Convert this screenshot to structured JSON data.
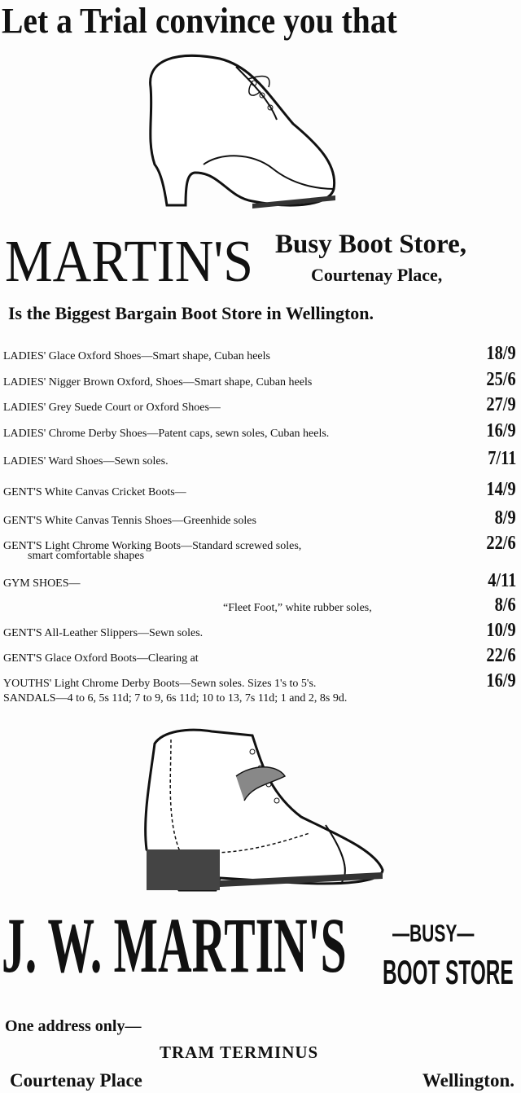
{
  "headline": "Let a Trial convince you that",
  "store": {
    "name": "MARTIN'S",
    "subtitle": "Busy Boot Store,",
    "location": "Courtenay Place,"
  },
  "tagline": "Is the Biggest Bargain Boot Store in Wellington.",
  "items": [
    {
      "desc": "LADIES' Glace Oxford Shoes—Smart shape, Cuban heels",
      "price": "18/9"
    },
    {
      "desc": "LADIES' Nigger Brown Oxford, Shoes—Smart shape, Cuban heels",
      "price": "25/6"
    },
    {
      "desc": "LADIES' Grey Suede Court or Oxford Shoes—",
      "price": "27/9"
    },
    {
      "desc": "LADIES' Chrome Derby Shoes—Patent caps, sewn soles, Cuban heels.",
      "price": "16/9"
    },
    {
      "desc": "LADIES' Ward Shoes—Sewn soles.",
      "price": "7/11"
    },
    {
      "desc": "GENT'S White Canvas Cricket Boots—",
      "price": "14/9"
    },
    {
      "desc": "GENT'S White Canvas Tennis Shoes—Greenhide soles",
      "price": "8/9"
    },
    {
      "desc": "GENT'S Light Chrome Working Boots—Standard  screwed  soles,",
      "sub": "smart comfortable shapes",
      "price": "22/6"
    },
    {
      "desc": "GYM SHOES—",
      "price": "4/11"
    },
    {
      "desc": "“Fleet Foot,” white rubber soles,",
      "price": "8/6"
    },
    {
      "desc": "GENT'S All-Leather Slippers—Sewn soles.",
      "price": "10/9"
    },
    {
      "desc": "GENT'S Glace Oxford Boots—Clearing at",
      "price": "22/6"
    },
    {
      "desc": "YOUTHS' Light Chrome Derby Boots—Sewn soles. Sizes 1's to 5's.",
      "price": "16/9"
    }
  ],
  "sandals": "SANDALS—4 to 6, 5s 11d; 7 to 9, 6s 11d; 10 to 13, 7s 11d; 1 and 2, 8s 9d.",
  "footer": {
    "name": "J. W. MARTIN'S",
    "busy": "—BUSY—",
    "boot_store": "BOOT STORE",
    "address_note": "One address only—",
    "tram": "TRAM  TERMINUS",
    "street": "Courtenay  Place",
    "city": "Wellington."
  }
}
